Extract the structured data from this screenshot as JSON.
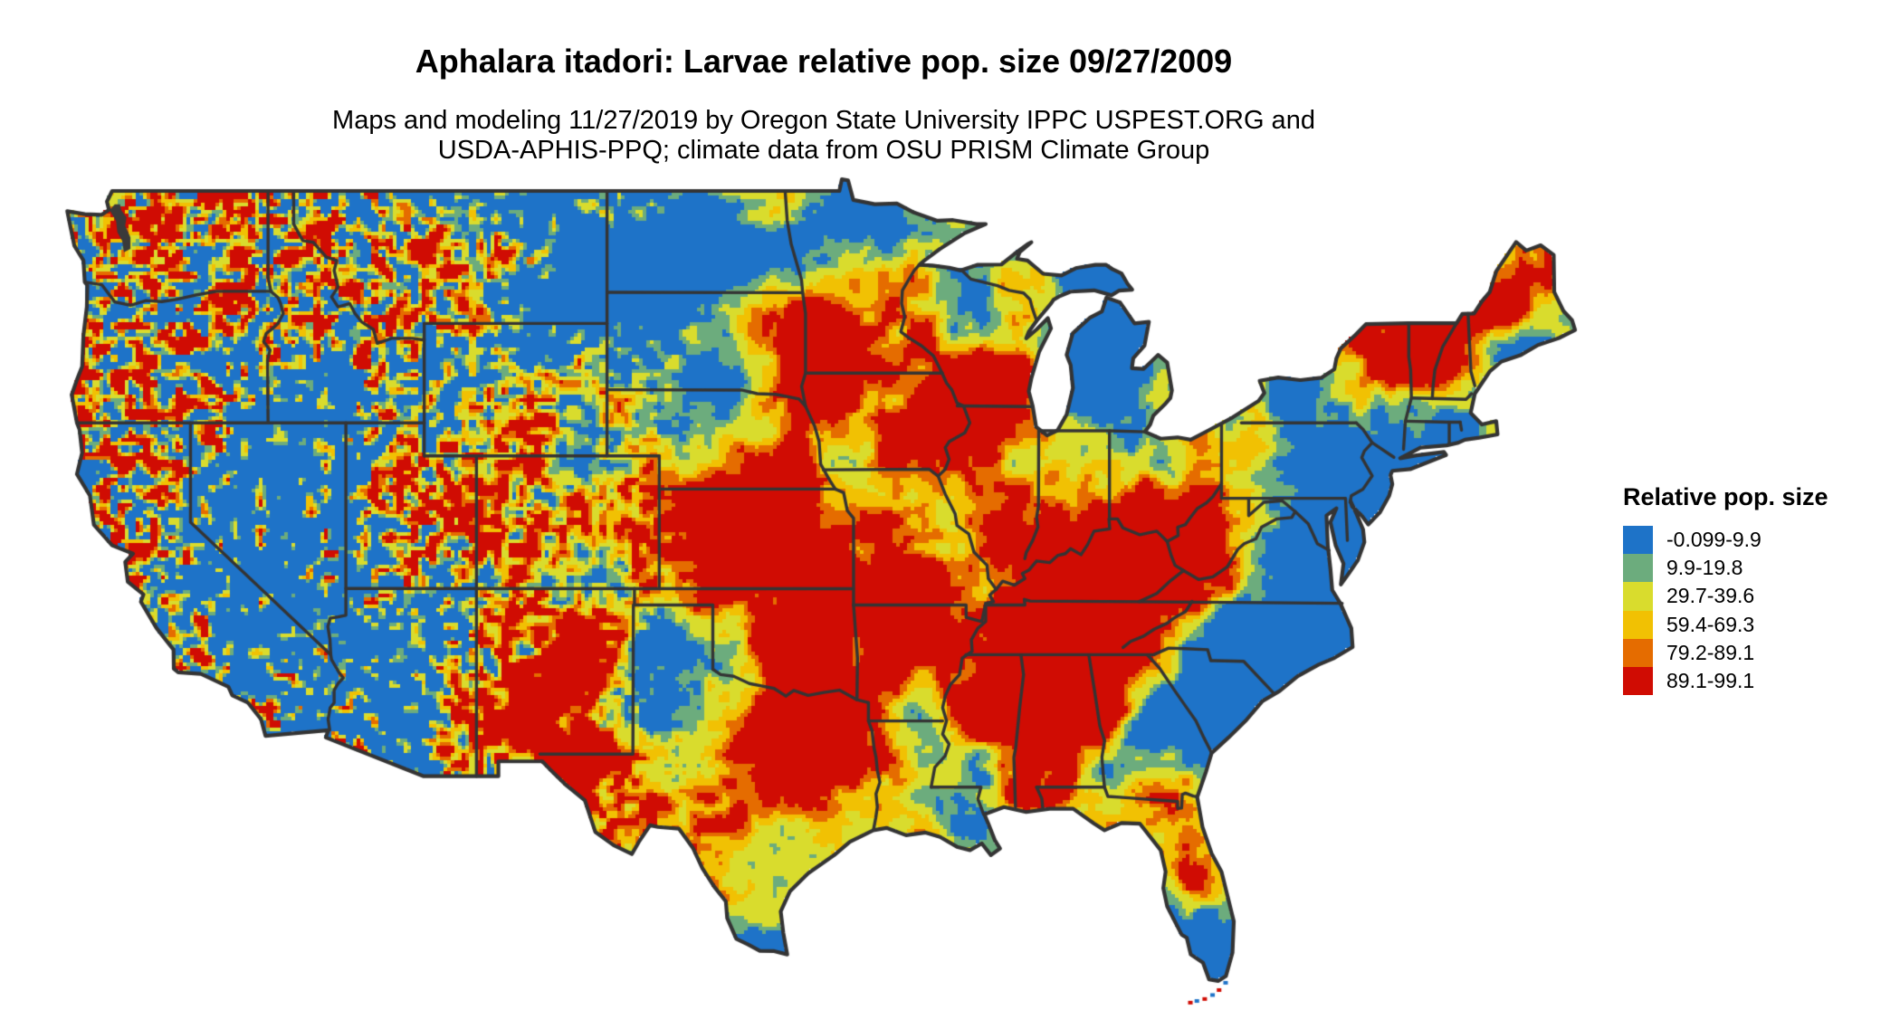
{
  "header": {
    "title": "Aphalara itadori: Larvae relative pop. size 09/27/2009",
    "subtitle_line1": "Maps and modeling 11/27/2019 by Oregon State University IPPC USPEST.ORG and",
    "subtitle_line2": "USDA-APHIS-PPQ; climate data from OSU PRISM Climate Group"
  },
  "legend": {
    "title": "Relative pop. size",
    "items": [
      {
        "label": "-0.099-9.9",
        "color": "#1e73c8"
      },
      {
        "label": "9.9-19.8",
        "color": "#6cac7d"
      },
      {
        "label": "29.7-39.6",
        "color": "#d9dc2d"
      },
      {
        "label": "59.4-69.3",
        "color": "#f1c103"
      },
      {
        "label": "79.2-89.1",
        "color": "#e56c00"
      },
      {
        "label": "89.1-99.1",
        "color": "#d00c03"
      }
    ]
  },
  "map": {
    "region": "Contiguous United States",
    "border_color": "#343434",
    "background_color": "#ffffff"
  }
}
